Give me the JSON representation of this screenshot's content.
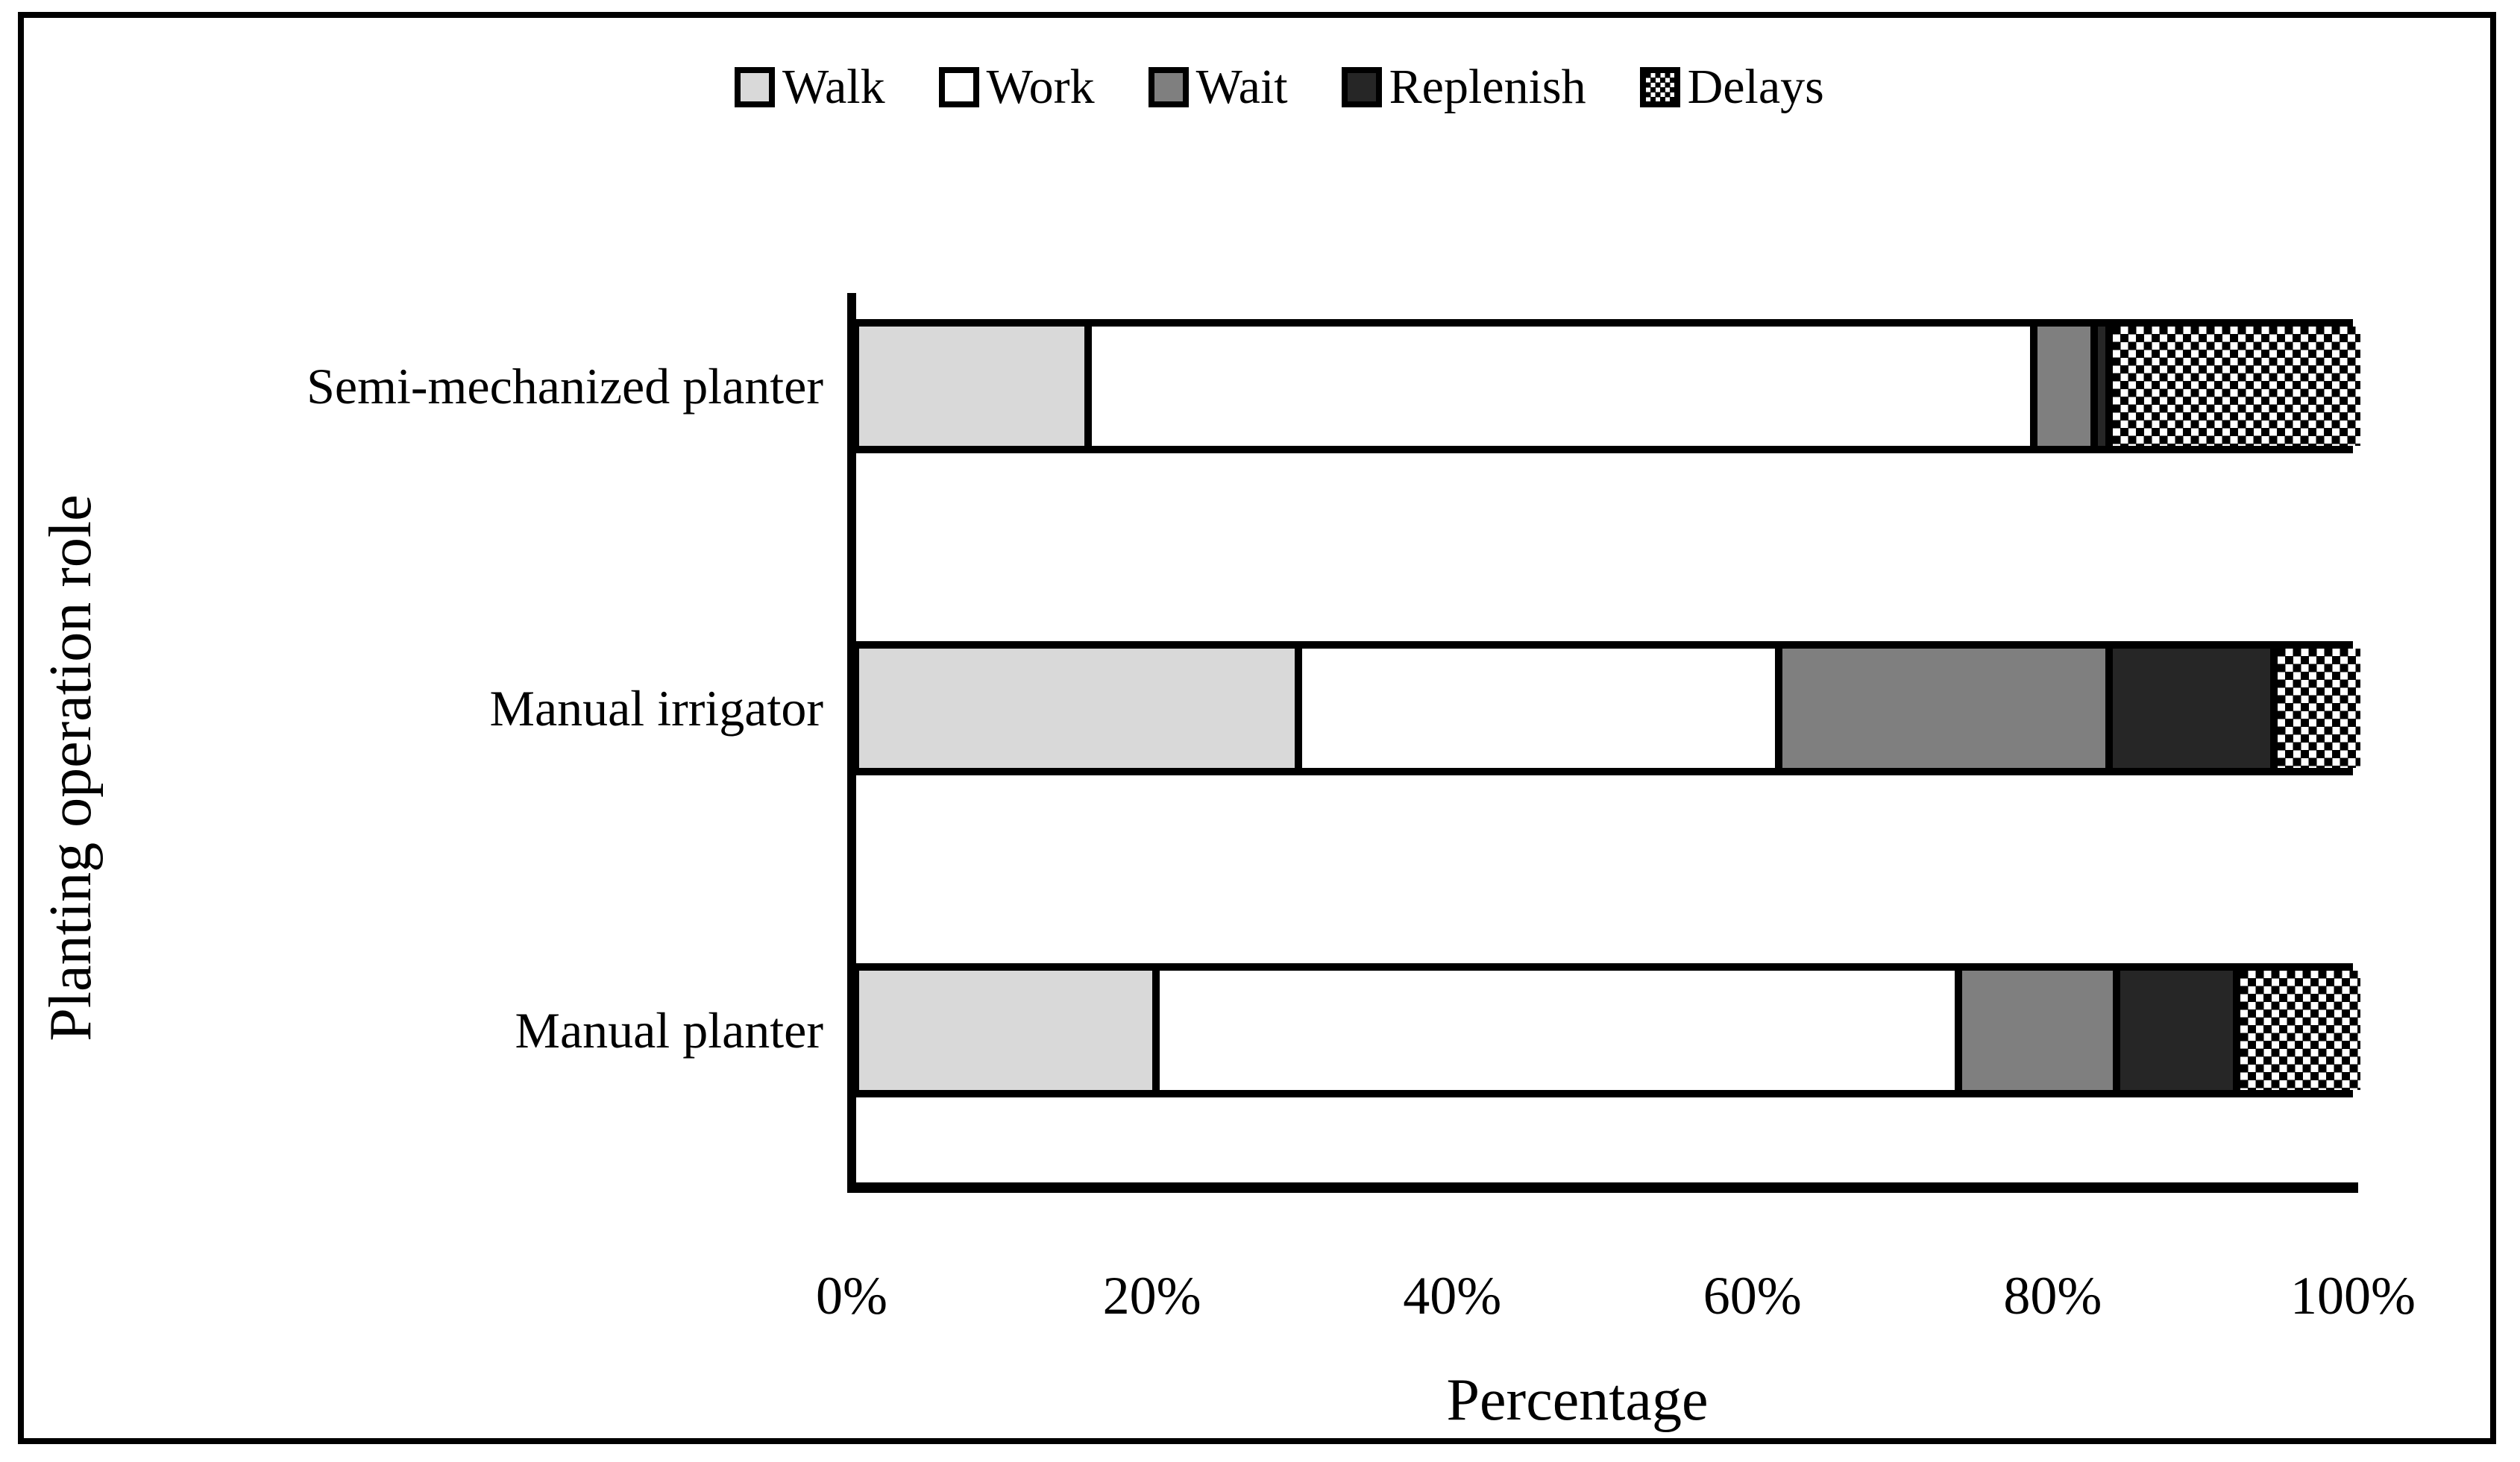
{
  "chart_data": {
    "type": "bar",
    "orientation": "horizontal",
    "stacked": true,
    "title": "",
    "xlabel": "Percentage",
    "ylabel": "Planting operation role",
    "xlim": [
      0,
      100
    ],
    "xticks": [
      "0%",
      "20%",
      "40%",
      "60%",
      "80%",
      "100%"
    ],
    "grid": false,
    "legend_position": "top",
    "categories": [
      "Semi-mechanized planter",
      "Manual irrigator",
      "Manual planter"
    ],
    "series": [
      {
        "name": "Walk",
        "fill": "#d9d9d9",
        "values": [
          15,
          29,
          19.5
        ]
      },
      {
        "name": "Work",
        "fill": "#ffffff",
        "values": [
          63,
          32,
          53.5
        ]
      },
      {
        "name": "Wait",
        "fill": "#7f7f7f",
        "values": [
          4,
          22,
          10.5
        ]
      },
      {
        "name": "Replenish",
        "fill": "#262626",
        "values": [
          1,
          11,
          8
        ]
      },
      {
        "name": "Delays",
        "fill": "pattern-dots",
        "values": [
          17,
          6,
          8.5
        ]
      }
    ],
    "colors": {
      "walk": "#d9d9d9",
      "work": "#ffffff",
      "wait": "#7f7f7f",
      "replenish": "#262626",
      "delays_pattern_dot": "#000000",
      "axis": "#000000",
      "border": "#000000"
    }
  }
}
